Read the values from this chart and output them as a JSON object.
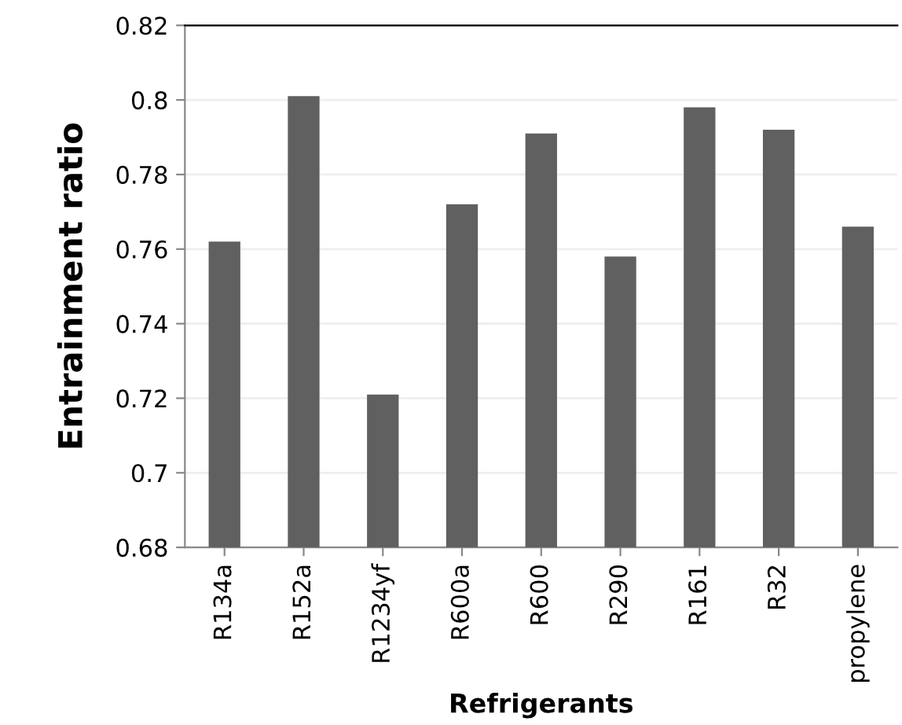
{
  "chart_data": {
    "type": "bar",
    "xlabel": "Refrigerants",
    "ylabel": "Entrainment ratio",
    "categories": [
      "R134a",
      "R152a",
      "R1234yf",
      "R600a",
      "R600",
      "R290",
      "R161",
      "R32",
      "propylene"
    ],
    "values": [
      0.762,
      0.801,
      0.721,
      0.772,
      0.791,
      0.758,
      0.798,
      0.792,
      0.766
    ],
    "color": "#606060",
    "ylim": [
      0.68,
      0.82
    ],
    "yticks": [
      0.68,
      0.7,
      0.72,
      0.74,
      0.76,
      0.78,
      0.8,
      0.82
    ],
    "grid": "y"
  }
}
